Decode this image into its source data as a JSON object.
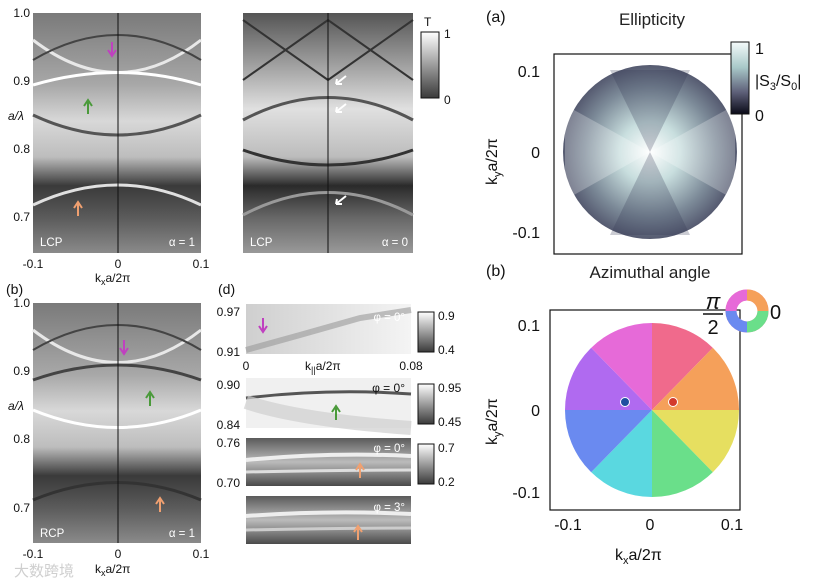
{
  "panels": {
    "left_top": {
      "yaxis_label": "a/λ",
      "yticks": [
        "1.0",
        "0.9",
        "0.8",
        "0.7"
      ],
      "xticks": [
        "-0.1",
        "0",
        "0.1"
      ],
      "xlabel_parts": [
        "k",
        "x",
        "a/2π"
      ],
      "left_plot": {
        "pol": "LCP",
        "alpha": "α = 1"
      },
      "right_plot": {
        "pol": "LCP",
        "alpha": "α = 0"
      },
      "colorbar": {
        "label": "T",
        "max": "1",
        "min": "0"
      }
    },
    "b": {
      "label": "(b)",
      "yaxis_label": "a/λ",
      "yticks": [
        "1.0",
        "0.9",
        "0.8",
        "0.7"
      ],
      "xticks": [
        "-0.1",
        "0",
        "0.1"
      ],
      "xlabel_parts": [
        "k",
        "x",
        "a/2π"
      ],
      "pol": "RCP",
      "alpha": "α = 1"
    },
    "d": {
      "label": "(d)",
      "rows": [
        {
          "phi": "φ = 0°",
          "yticks": [
            "0.97",
            "0.91"
          ],
          "cbar": [
            "0.9",
            "0.4"
          ]
        },
        {
          "phi": "φ = 0°",
          "yticks": [
            "0.90",
            "0.84"
          ],
          "cbar": [
            "0.95",
            "0.45"
          ]
        },
        {
          "phi": "φ = 0°",
          "yticks": [
            "0.76",
            "0.70"
          ],
          "cbar": [
            "0.7",
            "0.2"
          ]
        },
        {
          "phi": "φ = 3°",
          "yticks": [],
          "cbar": []
        }
      ],
      "xticks": [
        "0",
        "0.08"
      ],
      "xlabel_parts": [
        "k",
        "||",
        "a/2π"
      ]
    },
    "a": {
      "label": "(a)",
      "title": "Ellipticity",
      "yticks": [
        "0.1",
        "0",
        "-0.1"
      ],
      "ylabel_parts": [
        "k",
        "y",
        "a/2π"
      ],
      "colorbar": {
        "max": "1",
        "min": "0",
        "label_parts": [
          "|S",
          "3",
          "/S",
          "0",
          "|"
        ]
      }
    },
    "b_right": {
      "label": "(b)",
      "title": "Azimuthal angle",
      "yticks": [
        "0.1",
        "0",
        "-0.1"
      ],
      "xticks": [
        "-0.1",
        "0",
        "0.1"
      ],
      "ylabel_parts": [
        "k",
        "y",
        "a/2π"
      ],
      "xlabel_parts": [
        "k",
        "x",
        "a/2π"
      ],
      "wheel": {
        "numerator": "π",
        "denominator": "2",
        "right": "0"
      },
      "points": {
        "blue": "#1f4fa0",
        "red": "#d33a2c"
      }
    }
  },
  "watermark": "大数跨境",
  "colors": {
    "magenta_arrow": "#c040c0",
    "green_arrow": "#4a9a3a",
    "orange_arrow": "#f0a070",
    "white_arrow": "#ffffff"
  }
}
